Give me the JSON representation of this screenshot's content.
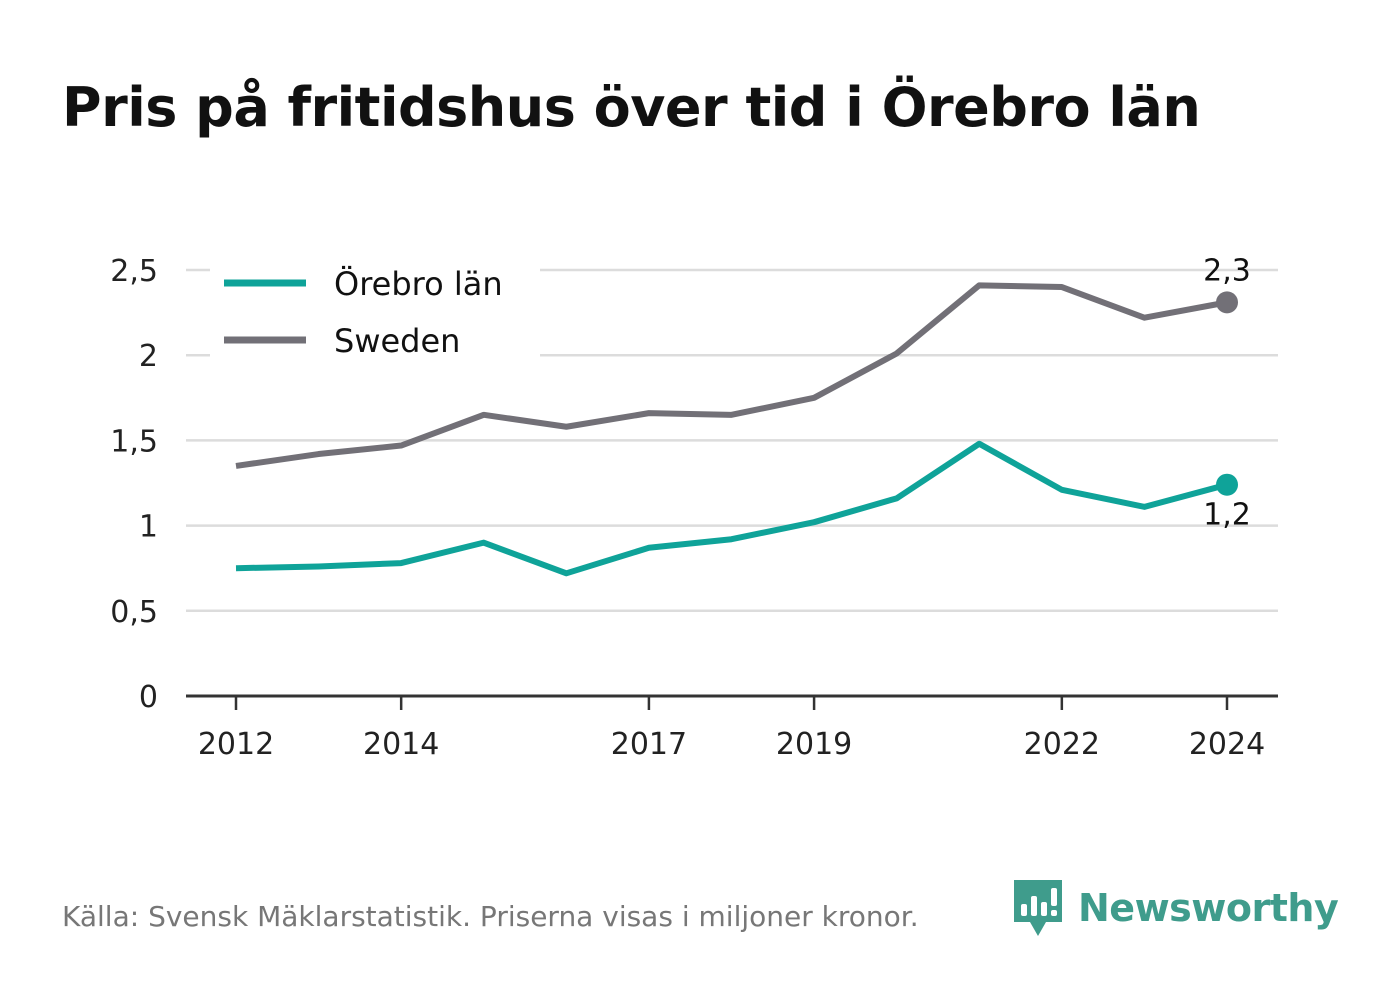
{
  "title": "Pris på fritidshus över tid i Örebro län",
  "source": "Källa: Svensk Mäklarstatistik. Priserna visas i miljoner kronor.",
  "brand": "Newsworthy",
  "chart_data": {
    "type": "line",
    "title": "Pris på fritidshus över tid i Örebro län",
    "xlabel": "",
    "ylabel": "",
    "x": [
      2012,
      2013,
      2014,
      2015,
      2016,
      2017,
      2018,
      2019,
      2020,
      2021,
      2022,
      2023,
      2024
    ],
    "x_tick_values": [
      2012,
      2014,
      2017,
      2019,
      2022,
      2024
    ],
    "x_tick_labels": [
      "2012",
      "2014",
      "2017",
      "2019",
      "2022",
      "2024"
    ],
    "y_ticks": [
      0,
      0.5,
      1,
      1.5,
      2,
      2.5
    ],
    "y_tick_labels": [
      "0",
      "0,5",
      "1",
      "1,5",
      "2",
      "2,5"
    ],
    "ylim": [
      0,
      2.5
    ],
    "xlim": [
      2012,
      2024
    ],
    "grid": true,
    "legend_position": "top-left",
    "series": [
      {
        "name": "Örebro län",
        "color": "#0fa399",
        "values": [
          0.75,
          0.76,
          0.78,
          0.9,
          0.72,
          0.87,
          0.92,
          1.02,
          1.16,
          1.48,
          1.21,
          1.11,
          1.24
        ],
        "end_label": "1,2",
        "end_label_position": "below"
      },
      {
        "name": "Sweden",
        "color": "#727077",
        "values": [
          1.35,
          1.42,
          1.47,
          1.65,
          1.58,
          1.66,
          1.65,
          1.75,
          2.01,
          2.41,
          2.4,
          2.22,
          2.31
        ],
        "end_label": "2,3",
        "end_label_position": "above"
      }
    ]
  }
}
